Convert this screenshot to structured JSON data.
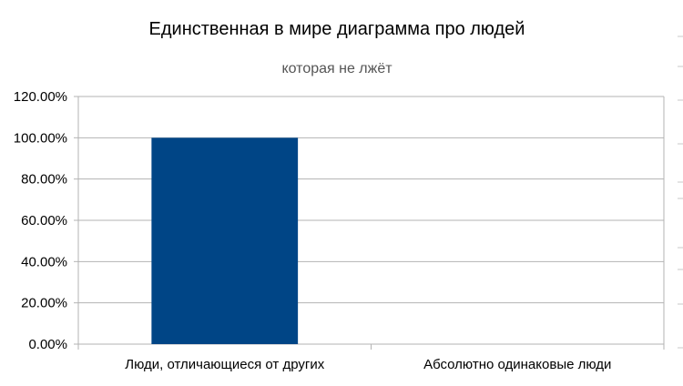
{
  "chart_data": {
    "type": "bar",
    "title": "Единственная в мире диаграмма про людей",
    "subtitle": "которая не лжёт",
    "xlabel": "",
    "ylabel": "",
    "categories": [
      "Люди, отличающиеся от других",
      "Абсолютно одинаковые люди"
    ],
    "series": [
      {
        "values": [
          100,
          0
        ],
        "color": "#004586"
      }
    ],
    "ylim": [
      0,
      120
    ],
    "yticks": [
      0,
      20,
      40,
      60,
      80,
      100,
      120
    ],
    "ytick_labels": [
      "0.00%",
      "20.00%",
      "40.00%",
      "60.00%",
      "80.00%",
      "100.00%",
      "120.00%"
    ],
    "grid": true,
    "legend": "none"
  }
}
